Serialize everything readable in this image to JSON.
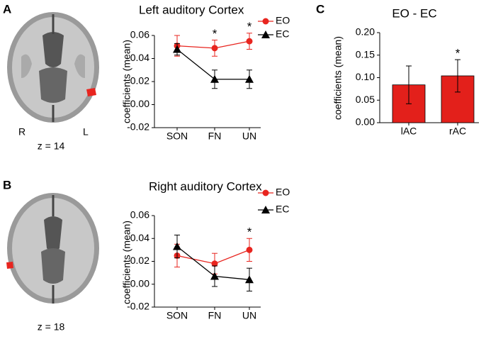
{
  "figure": {
    "panels": [
      {
        "label": "A",
        "left_side": "R",
        "right_side": "L",
        "slice": "z = 14"
      },
      {
        "label": "B",
        "slice": "z = 18"
      },
      {
        "label": "C"
      }
    ]
  },
  "chart_data": [
    {
      "type": "line",
      "title": "Left auditory Cortex",
      "y_label": "coefficients (mean)",
      "categories": [
        "SON",
        "FN",
        "UN"
      ],
      "series": [
        {
          "name": "EO",
          "color": "#e8251f",
          "marker": "circle",
          "values": [
            0.051,
            0.049,
            0.055
          ],
          "errors": [
            0.009,
            0.007,
            0.007
          ]
        },
        {
          "name": "EC",
          "color": "#000000",
          "marker": "triangle",
          "values": [
            0.048,
            0.022,
            0.022
          ],
          "errors": [
            0.005,
            0.008,
            0.008
          ]
        }
      ],
      "significance": [
        null,
        "*",
        "*"
      ],
      "ylim": [
        -0.02,
        0.06
      ],
      "yticks": [
        -0.02,
        {
          "value": 0,
          "label": "0.00"
        },
        0.02,
        0.04,
        0.06
      ]
    },
    {
      "type": "line",
      "title": "Right auditory Cortex",
      "y_label": "coefficients (mean)",
      "categories": [
        "SON",
        "FN",
        "UN"
      ],
      "series": [
        {
          "name": "EO",
          "color": "#e8251f",
          "marker": "circle",
          "values": [
            0.025,
            0.018,
            0.03
          ],
          "errors": [
            0.01,
            0.009,
            0.01
          ]
        },
        {
          "name": "EC",
          "color": "#000000",
          "marker": "triangle",
          "values": [
            0.033,
            0.007,
            0.004
          ],
          "errors": [
            0.01,
            0.009,
            0.01
          ]
        }
      ],
      "significance": [
        null,
        null,
        "*"
      ],
      "ylim": [
        -0.02,
        0.06
      ],
      "yticks": [
        -0.02,
        {
          "value": 0,
          "label": "0.00"
        },
        0.02,
        0.04,
        0.06
      ]
    },
    {
      "type": "bar",
      "title": "EO - EC",
      "y_label": "coefficients (mean)",
      "categories": [
        "lAC",
        "rAC"
      ],
      "color": "#e3201b",
      "values": [
        0.084,
        0.104
      ],
      "errors": [
        0.042,
        0.036
      ],
      "significance": [
        null,
        "*"
      ],
      "ylim": [
        0,
        0.2
      ],
      "yticks": [
        {
          "value": 0,
          "label": "0.00"
        },
        0.05,
        {
          "value": 0.1,
          "label": "0.10"
        },
        0.15,
        {
          "value": 0.2,
          "label": "0.20"
        }
      ]
    }
  ]
}
